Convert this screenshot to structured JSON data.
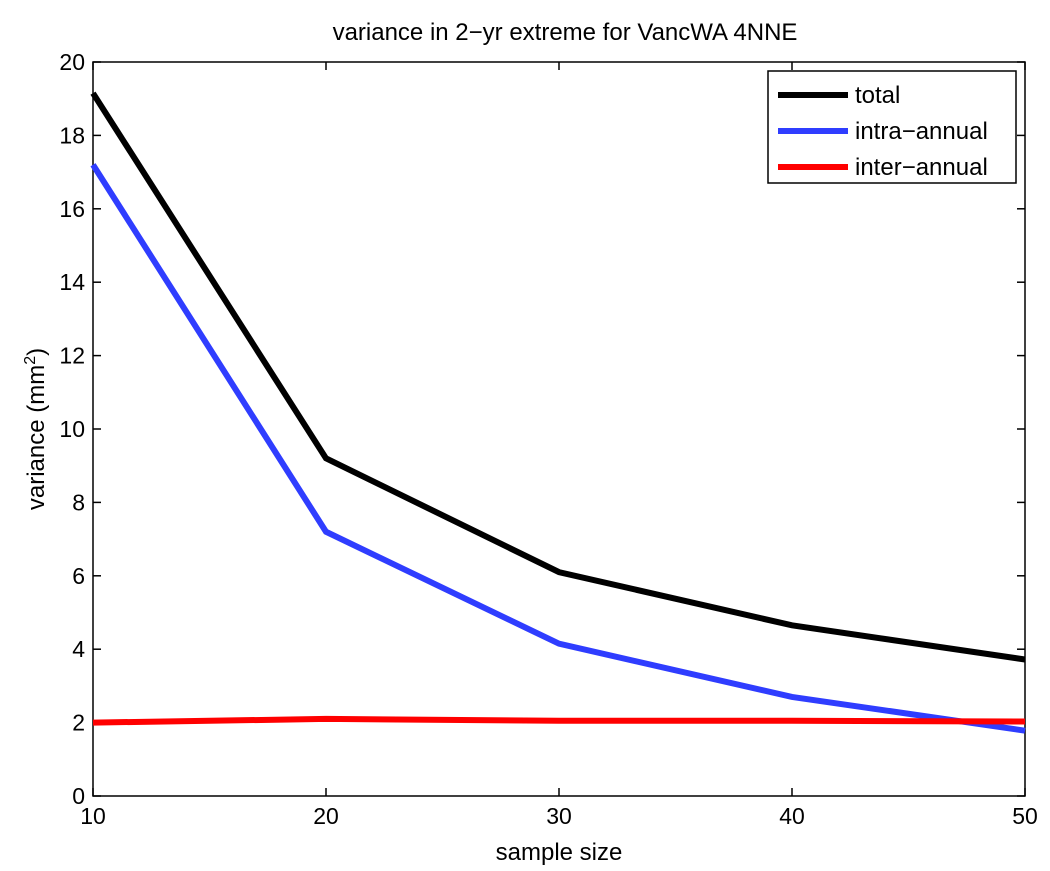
{
  "chart_data": {
    "type": "line",
    "title": "variance in 2−yr extreme for VancWA 4NNE",
    "xlabel": "sample size",
    "ylabel": "variance (mm",
    "ylabel_sup": "2",
    "ylabel_close": ")",
    "x": [
      10,
      20,
      30,
      40,
      50
    ],
    "xlim": [
      10,
      50
    ],
    "ylim": [
      0,
      20
    ],
    "xticks": [
      10,
      20,
      30,
      40,
      50
    ],
    "yticks": [
      0,
      2,
      4,
      6,
      8,
      10,
      12,
      14,
      16,
      18,
      20
    ],
    "grid": false,
    "legend_position": "top-right",
    "series": [
      {
        "name": "total",
        "color": "#000000",
        "values": [
          19.15,
          9.2,
          6.1,
          4.65,
          3.72
        ]
      },
      {
        "name": "intra−annual",
        "color": "#2f3dff",
        "values": [
          17.2,
          7.2,
          4.15,
          2.7,
          1.78
        ]
      },
      {
        "name": "inter−annual",
        "color": "#ff0000",
        "values": [
          2.0,
          2.1,
          2.05,
          2.05,
          2.03
        ]
      }
    ]
  }
}
